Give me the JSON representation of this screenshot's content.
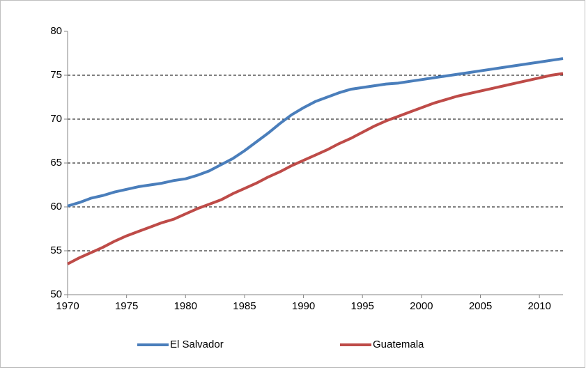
{
  "chart_data": {
    "type": "line",
    "x": [
      1970,
      1971,
      1972,
      1973,
      1974,
      1975,
      1976,
      1977,
      1978,
      1979,
      1980,
      1981,
      1982,
      1983,
      1984,
      1985,
      1986,
      1987,
      1988,
      1989,
      1990,
      1991,
      1992,
      1993,
      1994,
      1995,
      1996,
      1997,
      1998,
      1999,
      2000,
      2001,
      2002,
      2003,
      2004,
      2005,
      2006,
      2007,
      2008,
      2009,
      2010,
      2011,
      2012
    ],
    "series": [
      {
        "name": "El Salvador",
        "color": "#4a7ebb",
        "values": [
          60.1,
          60.5,
          61.0,
          61.3,
          61.7,
          62.0,
          62.3,
          62.5,
          62.7,
          63.0,
          63.2,
          63.6,
          64.1,
          64.8,
          65.5,
          66.4,
          67.4,
          68.4,
          69.5,
          70.5,
          71.3,
          72.0,
          72.5,
          73.0,
          73.4,
          73.6,
          73.8,
          74.0,
          74.1,
          74.3,
          74.5,
          74.7,
          74.9,
          75.1,
          75.3,
          75.5,
          75.7,
          75.9,
          76.1,
          76.3,
          76.5,
          76.7,
          76.9
        ]
      },
      {
        "name": "Guatemala",
        "color": "#be4b48",
        "values": [
          53.5,
          54.2,
          54.8,
          55.4,
          56.1,
          56.7,
          57.2,
          57.7,
          58.2,
          58.6,
          59.2,
          59.8,
          60.3,
          60.8,
          61.5,
          62.1,
          62.7,
          63.4,
          64.0,
          64.7,
          65.3,
          65.9,
          66.5,
          67.2,
          67.8,
          68.5,
          69.2,
          69.8,
          70.3,
          70.8,
          71.3,
          71.8,
          72.2,
          72.6,
          72.9,
          73.2,
          73.5,
          73.8,
          74.1,
          74.4,
          74.7,
          75.0,
          75.2
        ]
      }
    ],
    "xlim": [
      1970,
      2012
    ],
    "xticks": [
      1970,
      1975,
      1980,
      1985,
      1990,
      1995,
      2000,
      2005,
      2010
    ],
    "ylim": [
      50,
      80
    ],
    "yticks": [
      50,
      55,
      60,
      65,
      70,
      75,
      80
    ],
    "grid": true,
    "legend": "bottom"
  }
}
